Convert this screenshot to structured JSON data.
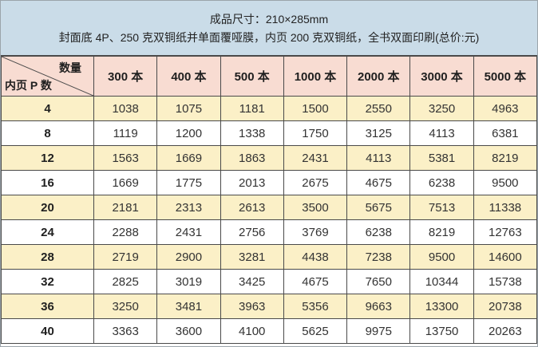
{
  "spec_header": {
    "line1": "成品尺寸：210×285mm",
    "line2": "封面底 4P、250 克双铜纸并单面覆哑膜，内页 200 克双铜纸，全书双面印刷(总价:元)"
  },
  "chart_data": {
    "type": "table",
    "title": "成品尺寸：210×285mm",
    "subtitle": "封面底 4P、250 克双铜纸并单面覆哑膜，内页 200 克双铜纸，全书双面印刷(总价:元)",
    "corner": {
      "top_right_label": "数量",
      "bottom_left_label": "内页 P 数"
    },
    "columns": [
      "300 本",
      "400 本",
      "500 本",
      "1000 本",
      "2000 本",
      "3000 本",
      "5000 本"
    ],
    "rows": [
      {
        "pages": 4,
        "prices": [
          1038,
          1075,
          1181,
          1500,
          2550,
          3250,
          4963
        ]
      },
      {
        "pages": 8,
        "prices": [
          1119,
          1200,
          1338,
          1750,
          3125,
          4113,
          6381
        ]
      },
      {
        "pages": 12,
        "prices": [
          1563,
          1669,
          1863,
          2431,
          4113,
          5381,
          8219
        ]
      },
      {
        "pages": 16,
        "prices": [
          1669,
          1775,
          2013,
          2675,
          4675,
          6238,
          9500
        ]
      },
      {
        "pages": 20,
        "prices": [
          2181,
          2313,
          2613,
          3500,
          5675,
          7513,
          11338
        ]
      },
      {
        "pages": 24,
        "prices": [
          2288,
          2431,
          2756,
          3769,
          6238,
          8219,
          12763
        ]
      },
      {
        "pages": 28,
        "prices": [
          2719,
          2900,
          3281,
          4438,
          7238,
          9500,
          14600
        ]
      },
      {
        "pages": 32,
        "prices": [
          2825,
          3019,
          3425,
          4675,
          7650,
          10344,
          15738
        ]
      },
      {
        "pages": 36,
        "prices": [
          3250,
          3481,
          3963,
          5356,
          9663,
          13300,
          20738
        ]
      },
      {
        "pages": 40,
        "prices": [
          3363,
          3600,
          4100,
          5625,
          9975,
          13750,
          20263
        ]
      }
    ]
  },
  "colors": {
    "spec_band_bg": "#cadce8",
    "header_row_bg": "#f8dcd2",
    "alt_row_bg": "#fbf0c7",
    "row_bg": "#ffffff",
    "grid_line": "#4a4a4a",
    "outer_frame": "#9ba4aa"
  }
}
